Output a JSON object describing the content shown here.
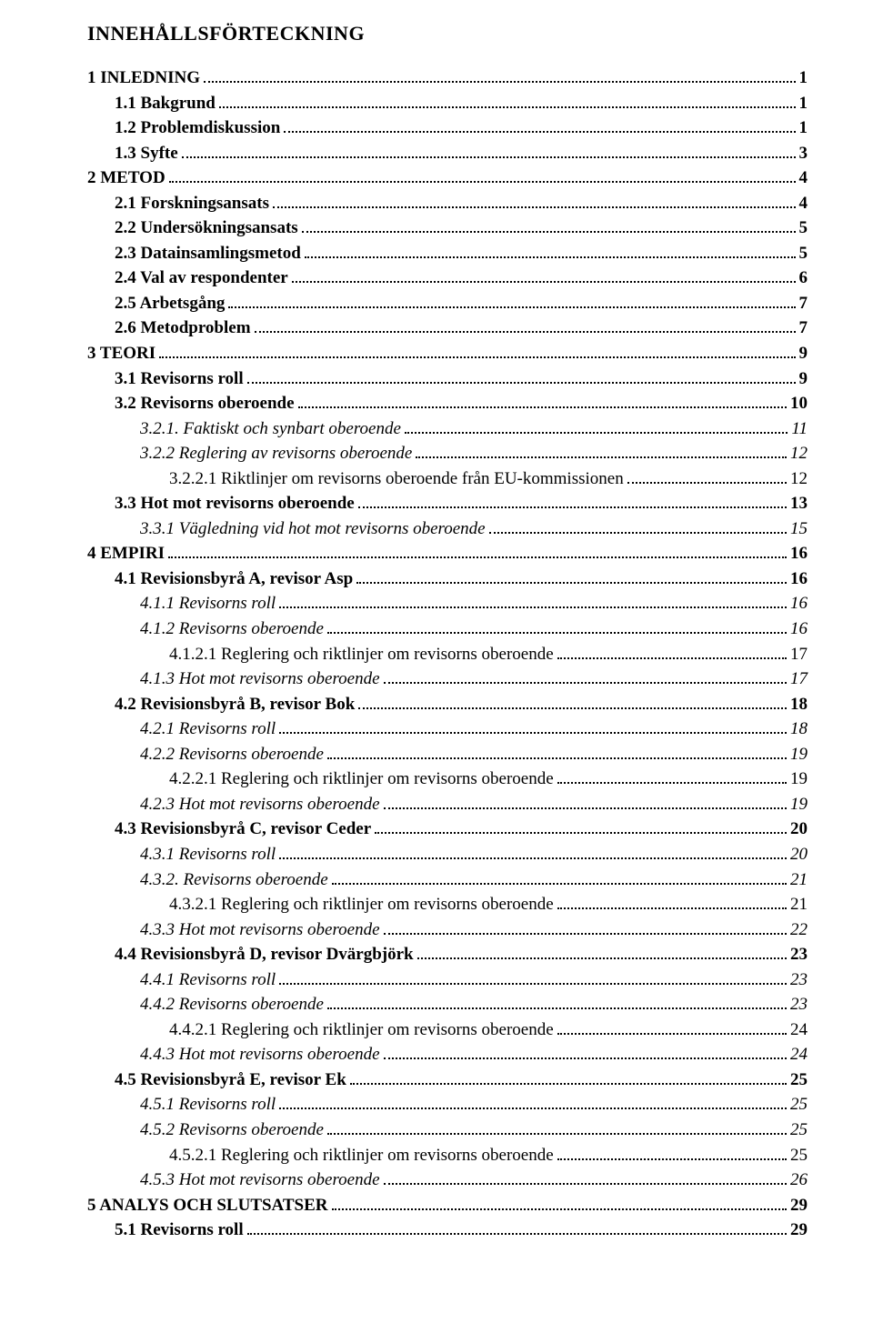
{
  "title": "INNEHÅLLSFÖRTECKNING",
  "entries": [
    {
      "label": "1 INLEDNING",
      "page": "1",
      "indent": 0,
      "bold": true,
      "italic": false
    },
    {
      "label": "1.1 Bakgrund",
      "page": "1",
      "indent": 1,
      "bold": true,
      "italic": false
    },
    {
      "label": "1.2 Problemdiskussion",
      "page": "1",
      "indent": 1,
      "bold": true,
      "italic": false
    },
    {
      "label": "1.3 Syfte",
      "page": "3",
      "indent": 1,
      "bold": true,
      "italic": false
    },
    {
      "label": "2 METOD",
      "page": "4",
      "indent": 0,
      "bold": true,
      "italic": false
    },
    {
      "label": "2.1 Forskningsansats",
      "page": "4",
      "indent": 1,
      "bold": true,
      "italic": false
    },
    {
      "label": "2.2 Undersökningsansats",
      "page": "5",
      "indent": 1,
      "bold": true,
      "italic": false
    },
    {
      "label": "2.3 Datainsamlingsmetod",
      "page": "5",
      "indent": 1,
      "bold": true,
      "italic": false
    },
    {
      "label": "2.4 Val av respondenter",
      "page": "6",
      "indent": 1,
      "bold": true,
      "italic": false
    },
    {
      "label": "2.5 Arbetsgång",
      "page": "7",
      "indent": 1,
      "bold": true,
      "italic": false
    },
    {
      "label": "2.6 Metodproblem",
      "page": "7",
      "indent": 1,
      "bold": true,
      "italic": false
    },
    {
      "label": "3 TEORI",
      "page": "9",
      "indent": 0,
      "bold": true,
      "italic": false
    },
    {
      "label": "3.1 Revisorns roll",
      "page": "9",
      "indent": 1,
      "bold": true,
      "italic": false
    },
    {
      "label": "3.2 Revisorns oberoende",
      "page": "10",
      "indent": 1,
      "bold": true,
      "italic": false
    },
    {
      "label": "3.2.1. Faktiskt och synbart oberoende",
      "page": "11",
      "indent": 2,
      "bold": false,
      "italic": true
    },
    {
      "label": "3.2.2 Reglering av revisorns oberoende",
      "page": "12",
      "indent": 2,
      "bold": false,
      "italic": true
    },
    {
      "label": "3.2.2.1 Riktlinjer om revisorns oberoende från EU-kommissionen",
      "page": "12",
      "indent": 3,
      "bold": false,
      "italic": false
    },
    {
      "label": "3.3 Hot mot revisorns oberoende",
      "page": "13",
      "indent": 1,
      "bold": true,
      "italic": false
    },
    {
      "label": "3.3.1 Vägledning vid hot mot revisorns oberoende",
      "page": "15",
      "indent": 2,
      "bold": false,
      "italic": true
    },
    {
      "label": "4 EMPIRI",
      "page": "16",
      "indent": 0,
      "bold": true,
      "italic": false
    },
    {
      "label": "4.1 Revisionsbyrå A, revisor Asp",
      "page": "16",
      "indent": 1,
      "bold": true,
      "italic": false
    },
    {
      "label": "4.1.1 Revisorns roll",
      "page": "16",
      "indent": 2,
      "bold": false,
      "italic": true
    },
    {
      "label": "4.1.2 Revisorns oberoende",
      "page": "16",
      "indent": 2,
      "bold": false,
      "italic": true
    },
    {
      "label": "4.1.2.1 Reglering och riktlinjer om revisorns oberoende",
      "page": "17",
      "indent": 3,
      "bold": false,
      "italic": false
    },
    {
      "label": "4.1.3 Hot mot revisorns oberoende",
      "page": "17",
      "indent": 2,
      "bold": false,
      "italic": true
    },
    {
      "label": "4.2 Revisionsbyrå B, revisor Bok",
      "page": "18",
      "indent": 1,
      "bold": true,
      "italic": false
    },
    {
      "label": "4.2.1 Revisorns roll",
      "page": "18",
      "indent": 2,
      "bold": false,
      "italic": true
    },
    {
      "label": "4.2.2 Revisorns oberoende",
      "page": "19",
      "indent": 2,
      "bold": false,
      "italic": true
    },
    {
      "label": "4.2.2.1 Reglering och riktlinjer om revisorns oberoende",
      "page": "19",
      "indent": 3,
      "bold": false,
      "italic": false
    },
    {
      "label": "4.2.3 Hot mot revisorns oberoende",
      "page": "19",
      "indent": 2,
      "bold": false,
      "italic": true
    },
    {
      "label": "4.3 Revisionsbyrå C, revisor Ceder",
      "page": "20",
      "indent": 1,
      "bold": true,
      "italic": false
    },
    {
      "label": "4.3.1 Revisorns roll",
      "page": "20",
      "indent": 2,
      "bold": false,
      "italic": true
    },
    {
      "label": "4.3.2. Revisorns oberoende",
      "page": "21",
      "indent": 2,
      "bold": false,
      "italic": true
    },
    {
      "label": "4.3.2.1 Reglering och riktlinjer om revisorns oberoende",
      "page": "21",
      "indent": 3,
      "bold": false,
      "italic": false
    },
    {
      "label": "4.3.3 Hot mot revisorns oberoende",
      "page": "22",
      "indent": 2,
      "bold": false,
      "italic": true
    },
    {
      "label": "4.4 Revisionsbyrå D, revisor Dvärgbjörk",
      "page": "23",
      "indent": 1,
      "bold": true,
      "italic": false
    },
    {
      "label": "4.4.1 Revisorns roll",
      "page": "23",
      "indent": 2,
      "bold": false,
      "italic": true
    },
    {
      "label": "4.4.2 Revisorns oberoende",
      "page": "23",
      "indent": 2,
      "bold": false,
      "italic": true
    },
    {
      "label": "4.4.2.1 Reglering och riktlinjer om revisorns oberoende",
      "page": "24",
      "indent": 3,
      "bold": false,
      "italic": false
    },
    {
      "label": "4.4.3 Hot mot revisorns oberoende",
      "page": "24",
      "indent": 2,
      "bold": false,
      "italic": true
    },
    {
      "label": "4.5 Revisionsbyrå E, revisor Ek",
      "page": "25",
      "indent": 1,
      "bold": true,
      "italic": false
    },
    {
      "label": "4.5.1 Revisorns roll",
      "page": "25",
      "indent": 2,
      "bold": false,
      "italic": true
    },
    {
      "label": "4.5.2 Revisorns oberoende",
      "page": "25",
      "indent": 2,
      "bold": false,
      "italic": true
    },
    {
      "label": "4.5.2.1 Reglering och riktlinjer om revisorns oberoende",
      "page": "25",
      "indent": 3,
      "bold": false,
      "italic": false
    },
    {
      "label": "4.5.3 Hot mot revisorns oberoende",
      "page": "26",
      "indent": 2,
      "bold": false,
      "italic": true
    },
    {
      "label": "5 ANALYS OCH SLUTSATSER",
      "page": "29",
      "indent": 0,
      "bold": true,
      "italic": false
    },
    {
      "label": "5.1 Revisorns roll",
      "page": "29",
      "indent": 1,
      "bold": true,
      "italic": false
    }
  ]
}
